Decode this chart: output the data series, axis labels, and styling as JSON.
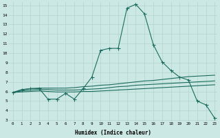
{
  "bg_color": "#cce8e4",
  "line_color": "#1a6b5e",
  "grid_color": "#b0d4cc",
  "xlabel": "Humidex (Indice chaleur)",
  "ylim": [
    3,
    15
  ],
  "xlim": [
    -0.5,
    23.3
  ],
  "yticks": [
    3,
    4,
    5,
    6,
    7,
    8,
    9,
    10,
    11,
    12,
    13,
    14,
    15
  ],
  "xticks": [
    0,
    1,
    2,
    3,
    4,
    5,
    6,
    7,
    8,
    9,
    10,
    11,
    12,
    13,
    14,
    15,
    16,
    17,
    18,
    19,
    20,
    21,
    22,
    23
  ],
  "series_main": [
    5.9,
    6.2,
    6.3,
    6.3,
    5.2,
    5.2,
    5.8,
    5.2,
    6.3,
    7.5,
    10.3,
    10.5,
    10.5,
    14.7,
    15.1,
    14.1,
    10.9,
    9.1,
    8.2,
    7.5,
    7.2,
    5.0,
    4.6,
    3.2
  ],
  "series_upper": [
    5.9,
    6.15,
    6.3,
    6.35,
    6.35,
    6.35,
    6.35,
    6.4,
    6.5,
    6.55,
    6.65,
    6.7,
    6.8,
    6.9,
    7.0,
    7.1,
    7.15,
    7.25,
    7.35,
    7.45,
    7.55,
    7.6,
    7.65,
    7.7
  ],
  "series_mid": [
    5.9,
    6.05,
    6.15,
    6.2,
    6.2,
    6.15,
    6.15,
    6.15,
    6.2,
    6.25,
    6.3,
    6.4,
    6.5,
    6.55,
    6.65,
    6.7,
    6.75,
    6.8,
    6.85,
    6.9,
    6.95,
    7.0,
    7.05,
    7.1
  ],
  "series_lower": [
    5.9,
    5.95,
    6.0,
    6.05,
    6.0,
    5.95,
    5.95,
    5.95,
    6.0,
    6.0,
    6.05,
    6.1,
    6.15,
    6.2,
    6.25,
    6.3,
    6.35,
    6.4,
    6.45,
    6.5,
    6.55,
    6.6,
    6.65,
    6.7
  ]
}
